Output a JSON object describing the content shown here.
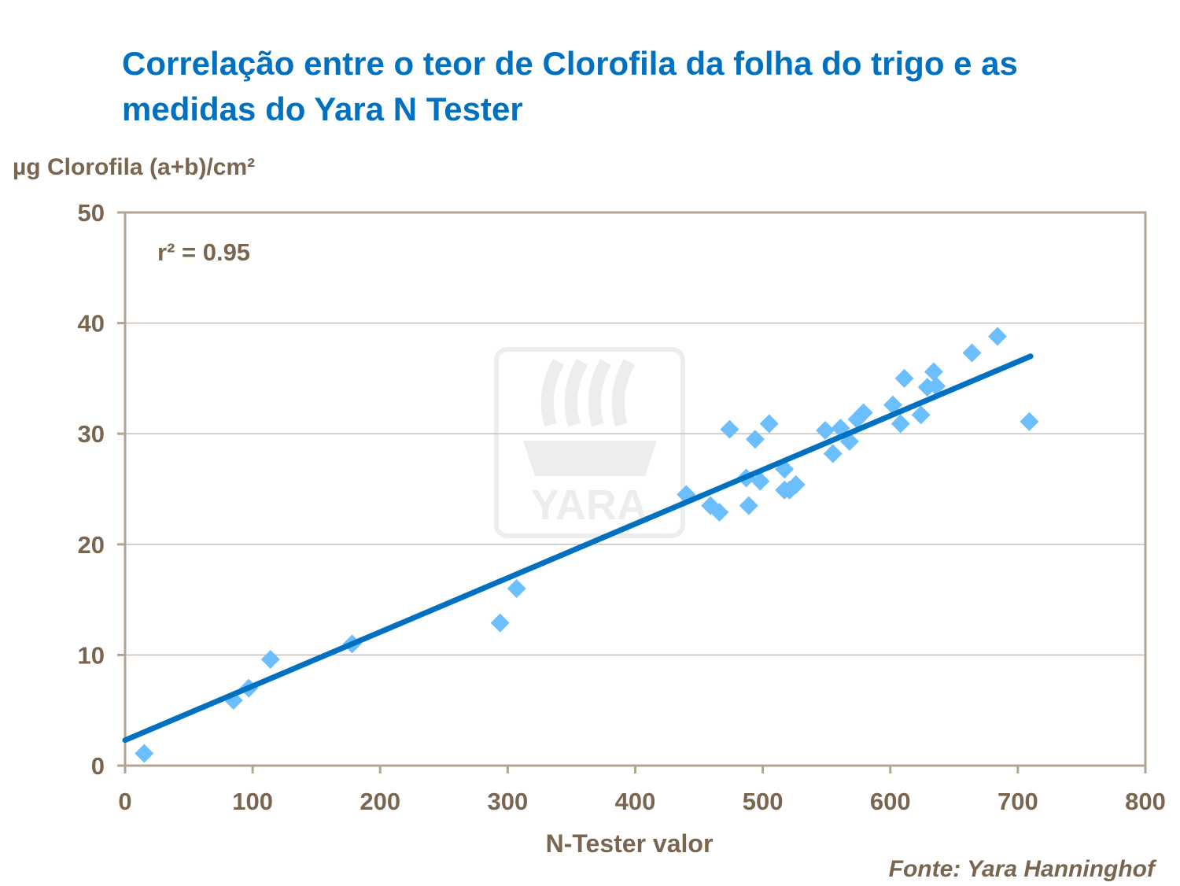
{
  "chart_data": {
    "type": "scatter",
    "title": "Correlação entre o teor de Clorofila da folha do trigo e as medidas do Yara N Tester",
    "xlabel": "N-Tester valor",
    "ylabel": "µg Clorofila (a+b)/cm²",
    "xlim": [
      0,
      800
    ],
    "ylim": [
      0,
      50
    ],
    "xticks": [
      0,
      100,
      200,
      300,
      400,
      500,
      600,
      700,
      800
    ],
    "yticks": [
      0,
      10,
      20,
      30,
      40,
      50
    ],
    "grid": "horizontal",
    "annotation": "r² = 0.95",
    "source": "Fonte: Yara Hanninghof",
    "watermark": "YARA",
    "colors": {
      "points": "#6bbfff",
      "trend": "#0070c0",
      "title": "#0070c0",
      "text": "#7a6650"
    },
    "points": [
      [
        15,
        1.1
      ],
      [
        85,
        5.9
      ],
      [
        97,
        7.0
      ],
      [
        114,
        9.6
      ],
      [
        178,
        11.0
      ],
      [
        294,
        12.9
      ],
      [
        307,
        16.0
      ],
      [
        440,
        24.5
      ],
      [
        459,
        23.5
      ],
      [
        466,
        22.9
      ],
      [
        474,
        30.4
      ],
      [
        487,
        26.0
      ],
      [
        489,
        23.5
      ],
      [
        494,
        29.5
      ],
      [
        498,
        25.7
      ],
      [
        505,
        30.9
      ],
      [
        517,
        26.8
      ],
      [
        517,
        24.9
      ],
      [
        521,
        24.9
      ],
      [
        526,
        25.4
      ],
      [
        549,
        30.3
      ],
      [
        555,
        28.2
      ],
      [
        561,
        30.5
      ],
      [
        568,
        29.3
      ],
      [
        574,
        31.3
      ],
      [
        579,
        31.9
      ],
      [
        602,
        32.6
      ],
      [
        608,
        30.9
      ],
      [
        611,
        35.0
      ],
      [
        624,
        31.7
      ],
      [
        629,
        34.2
      ],
      [
        634,
        35.6
      ],
      [
        636,
        34.3
      ],
      [
        664,
        37.3
      ],
      [
        684,
        38.8
      ],
      [
        709,
        31.1
      ]
    ],
    "trendline": {
      "x": [
        0,
        710
      ],
      "y": [
        2.3,
        37.0
      ]
    }
  }
}
